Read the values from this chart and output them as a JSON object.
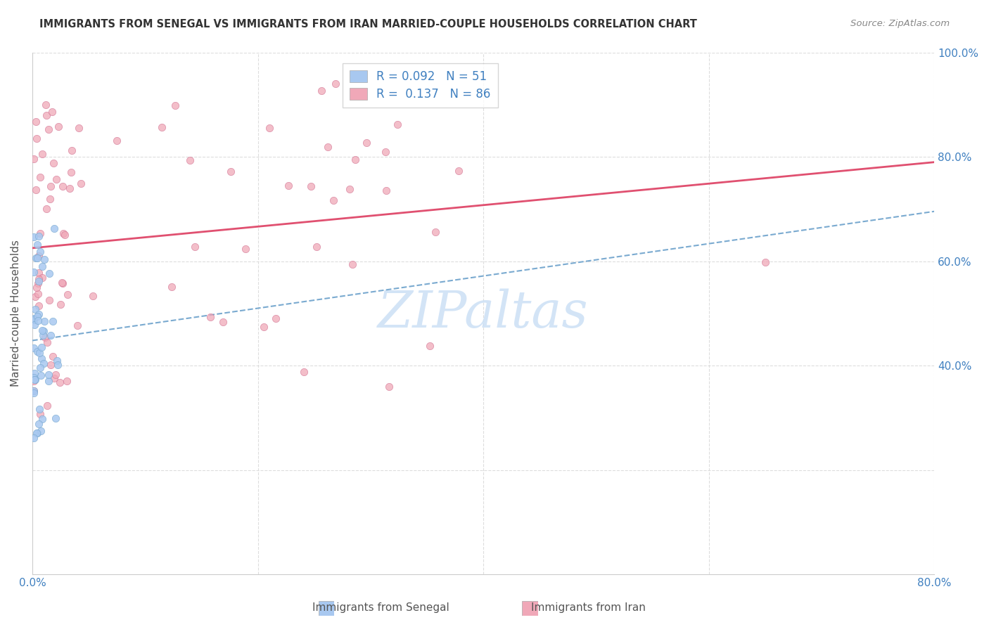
{
  "title": "IMMIGRANTS FROM SENEGAL VS IMMIGRANTS FROM IRAN MARRIED-COUPLE HOUSEHOLDS CORRELATION CHART",
  "source": "Source: ZipAtlas.com",
  "ylabel": "Married-couple Households",
  "xlim": [
    0.0,
    0.8
  ],
  "ylim": [
    0.0,
    1.0
  ],
  "R_senegal": 0.092,
  "N_senegal": 51,
  "R_iran": 0.137,
  "N_iran": 86,
  "color_senegal": "#a8c8f0",
  "color_iran": "#f0a8b8",
  "edge_color_senegal": "#7aaad0",
  "edge_color_iran": "#d07090",
  "line_color_senegal": "#7aaad0",
  "line_color_iran": "#e05070",
  "watermark_color": "#cce0f5",
  "grid_color": "#dddddd",
  "tick_label_color": "#4080c0",
  "title_fontsize": 10.5,
  "source_fontsize": 9.5,
  "axis_fontsize": 11,
  "legend_fontsize": 12
}
